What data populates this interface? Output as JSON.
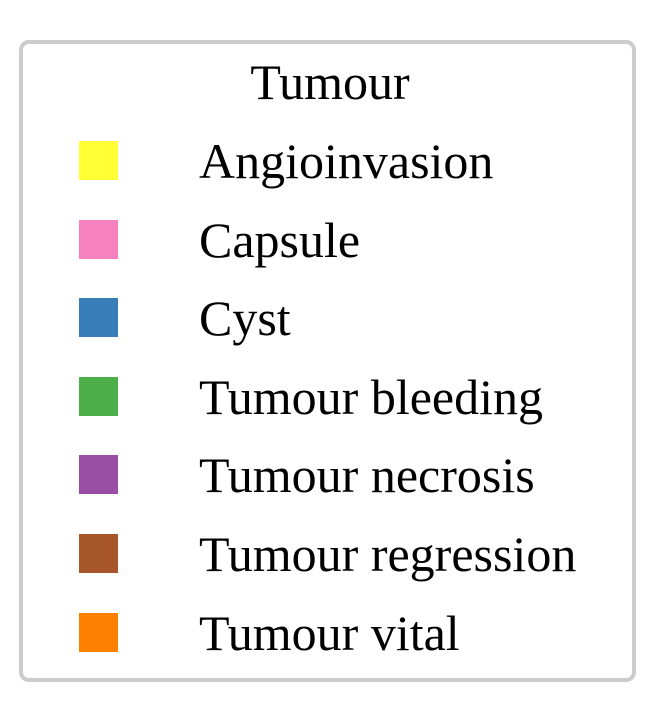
{
  "chart_data": {
    "type": "legend",
    "title": "Tumour",
    "entries": [
      {
        "label": "Angioinvasion",
        "color": "#ffff33"
      },
      {
        "label": "Capsule",
        "color": "#f781bf"
      },
      {
        "label": "Cyst",
        "color": "#377eb8"
      },
      {
        "label": "Tumour bleeding",
        "color": "#4daf4a"
      },
      {
        "label": "Tumour necrosis",
        "color": "#984ea3"
      },
      {
        "label": "Tumour regression",
        "color": "#a65628"
      },
      {
        "label": "Tumour vital",
        "color": "#ff7f00"
      }
    ]
  }
}
